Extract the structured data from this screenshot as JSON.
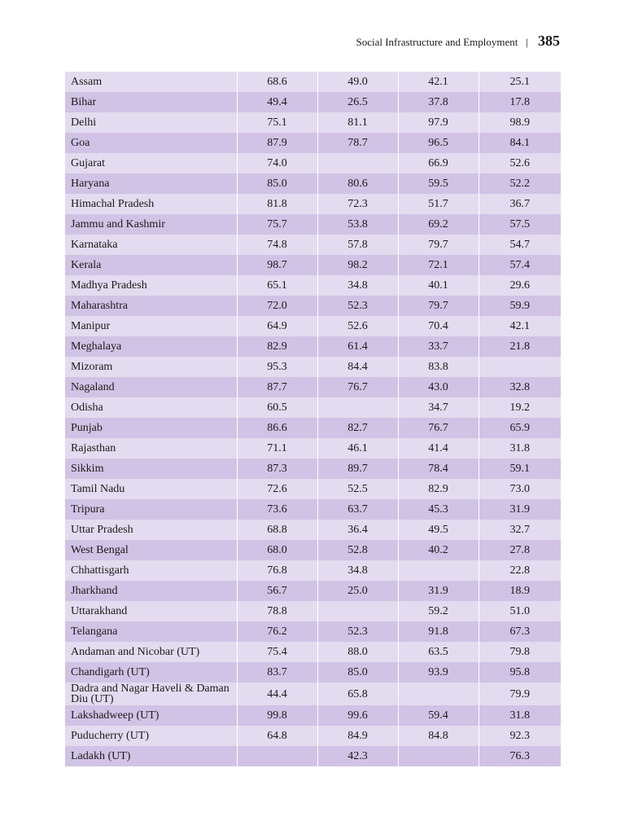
{
  "header": {
    "running_title": "Social Infrastructure and Employment",
    "separator": "|",
    "page_number": "385"
  },
  "colors": {
    "row_light": "#e3dbef",
    "row_dark": "#d1c3e5"
  },
  "table": {
    "rows": [
      {
        "state": "Assam",
        "values": [
          "68.6",
          "49.0",
          "42.1",
          "25.1"
        ]
      },
      {
        "state": "Bihar",
        "values": [
          "49.4",
          "26.5",
          "37.8",
          "17.8"
        ]
      },
      {
        "state": "Delhi",
        "values": [
          "75.1",
          "81.1",
          "97.9",
          "98.9"
        ]
      },
      {
        "state": "Goa",
        "values": [
          "87.9",
          "78.7",
          "96.5",
          "84.1"
        ]
      },
      {
        "state": "Gujarat",
        "values": [
          "74.0",
          "",
          "66.9",
          "52.6"
        ]
      },
      {
        "state": "Haryana",
        "values": [
          "85.0",
          "80.6",
          "59.5",
          "52.2"
        ]
      },
      {
        "state": "Himachal Pradesh",
        "values": [
          "81.8",
          "72.3",
          "51.7",
          "36.7"
        ]
      },
      {
        "state": "Jammu and Kashmir",
        "values": [
          "75.7",
          "53.8",
          "69.2",
          "57.5"
        ]
      },
      {
        "state": "Karnataka",
        "values": [
          "74.8",
          "57.8",
          "79.7",
          "54.7"
        ]
      },
      {
        "state": "Kerala",
        "values": [
          "98.7",
          "98.2",
          "72.1",
          "57.4"
        ]
      },
      {
        "state": "Madhya Pradesh",
        "values": [
          "65.1",
          "34.8",
          "40.1",
          "29.6"
        ]
      },
      {
        "state": "Maharashtra",
        "values": [
          "72.0",
          "52.3",
          "79.7",
          "59.9"
        ]
      },
      {
        "state": "Manipur",
        "values": [
          "64.9",
          "52.6",
          "70.4",
          "42.1"
        ]
      },
      {
        "state": "Meghalaya",
        "values": [
          "82.9",
          "61.4",
          "33.7",
          "21.8"
        ]
      },
      {
        "state": "Mizoram",
        "values": [
          "95.3",
          "84.4",
          "83.8",
          ""
        ]
      },
      {
        "state": "Nagaland",
        "values": [
          "87.7",
          "76.7",
          "43.0",
          "32.8"
        ]
      },
      {
        "state": "Odisha",
        "values": [
          "60.5",
          "",
          "34.7",
          "19.2"
        ]
      },
      {
        "state": "Punjab",
        "values": [
          "86.6",
          "82.7",
          "76.7",
          "65.9"
        ]
      },
      {
        "state": "Rajasthan",
        "values": [
          "71.1",
          "46.1",
          "41.4",
          "31.8"
        ]
      },
      {
        "state": "Sikkim",
        "values": [
          "87.3",
          "89.7",
          "78.4",
          "59.1"
        ]
      },
      {
        "state": "Tamil Nadu",
        "values": [
          "72.6",
          "52.5",
          "82.9",
          "73.0"
        ]
      },
      {
        "state": "Tripura",
        "values": [
          "73.6",
          "63.7",
          "45.3",
          "31.9"
        ]
      },
      {
        "state": "Uttar Pradesh",
        "values": [
          "68.8",
          "36.4",
          "49.5",
          "32.7"
        ]
      },
      {
        "state": "West Bengal",
        "values": [
          "68.0",
          "52.8",
          "40.2",
          "27.8"
        ]
      },
      {
        "state": "Chhattisgarh",
        "values": [
          "76.8",
          "34.8",
          "",
          "22.8"
        ]
      },
      {
        "state": "Jharkhand",
        "values": [
          "56.7",
          "25.0",
          "31.9",
          "18.9"
        ]
      },
      {
        "state": "Uttarakhand",
        "values": [
          "78.8",
          "",
          "59.2",
          "51.0"
        ]
      },
      {
        "state": "Telangana",
        "values": [
          "76.2",
          "52.3",
          "91.8",
          "67.3"
        ]
      },
      {
        "state": "Andaman and Nicobar (UT)",
        "values": [
          "75.4",
          "88.0",
          "63.5",
          "79.8"
        ]
      },
      {
        "state": "Chandigarh (UT)",
        "values": [
          "83.7",
          "85.0",
          "93.9",
          "95.8"
        ]
      },
      {
        "state": "Dadra and Nagar Haveli & Daman Diu (UT)",
        "values": [
          "44.4",
          "65.8",
          "",
          "79.9"
        ]
      },
      {
        "state": "Lakshadweep (UT)",
        "values": [
          "99.8",
          "99.6",
          "59.4",
          "31.8"
        ]
      },
      {
        "state": "Puducherry (UT)",
        "values": [
          "64.8",
          "84.9",
          "84.8",
          "92.3"
        ]
      },
      {
        "state": "Ladakh (UT)",
        "values": [
          "",
          "42.3",
          "",
          "76.3"
        ]
      }
    ]
  }
}
